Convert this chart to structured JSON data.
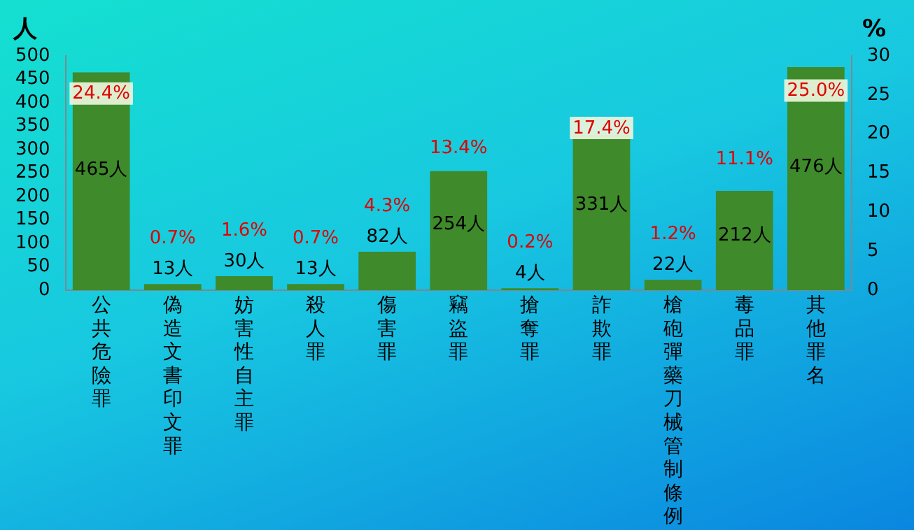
{
  "chart_data": {
    "type": "bar",
    "ylabel": "人",
    "y2label": "%",
    "categories": [
      "公共危險罪",
      "偽造文書印文罪",
      "妨害性自主罪",
      "殺人罪",
      "傷害罪",
      "竊盜罪",
      "搶奪罪",
      "詐欺罪",
      "槍砲彈藥刀械管制條例",
      "毒品罪",
      "其他罪名"
    ],
    "series": [
      {
        "color": "#3f8a2b",
        "values": [
          465,
          13,
          30,
          13,
          82,
          254,
          4,
          331,
          22,
          212,
          476
        ],
        "value_labels": [
          "465人",
          "13人",
          "30人",
          "13人",
          "82人",
          "254人",
          "4人",
          "331人",
          "22人",
          "212人",
          "476人"
        ]
      }
    ],
    "annotations": [
      "24.4%",
      "0.7%",
      "1.6%",
      "0.7%",
      "4.3%",
      "13.4%",
      "0.2%",
      "17.4%",
      "1.2%",
      "11.1%",
      "25.0%"
    ],
    "ylim": [
      0,
      500
    ],
    "yticks": [
      0,
      50,
      100,
      150,
      200,
      250,
      300,
      350,
      400,
      450,
      500
    ],
    "y2lim": [
      0,
      30
    ],
    "y2ticks": [
      0,
      5,
      10,
      15,
      20,
      25,
      30
    ],
    "grid": false,
    "legend": false
  }
}
